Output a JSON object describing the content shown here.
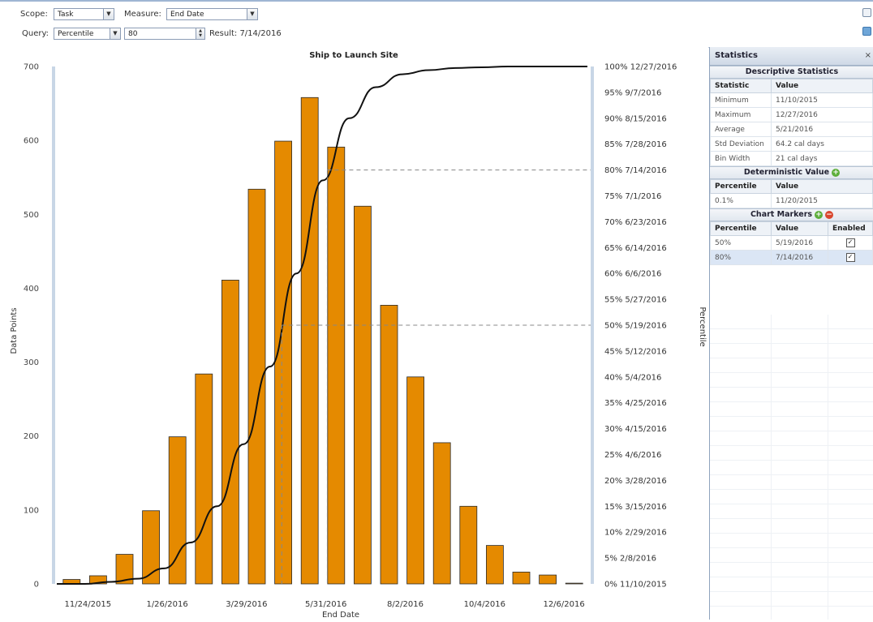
{
  "toolbar": {
    "scope_label": "Scope:",
    "scope_value": "Task",
    "measure_label": "Measure:",
    "measure_value": "End Date",
    "query_label": "Query:",
    "query_value": "Percentile",
    "query_input": "80",
    "result_text": "Result: 7/14/2016"
  },
  "chart_data": {
    "type": "bar",
    "title": "Ship to Launch Site",
    "xlabel": "End Date",
    "ylabel": "Data Points",
    "y2label": "Percentile",
    "ylim": [
      0,
      700
    ],
    "y_ticks": [
      "0",
      "100",
      "200",
      "300",
      "400",
      "500",
      "600",
      "700"
    ],
    "x_tick_labels": [
      "11/24/2015",
      "1/26/2016",
      "3/29/2016",
      "5/31/2016",
      "8/2/2016",
      "10/4/2016",
      "12/6/2016"
    ],
    "bar_values": [
      6,
      11,
      40,
      99,
      199,
      284,
      411,
      534,
      599,
      658,
      591,
      511,
      377,
      280,
      191,
      105,
      52,
      16,
      12,
      1
    ],
    "bar_color": "#e58a00",
    "percentile_ticks": [
      "0% 11/10/2015",
      "5% 2/8/2016",
      "10% 2/29/2016",
      "15% 3/15/2016",
      "20% 3/28/2016",
      "25% 4/6/2016",
      "30% 4/15/2016",
      "35% 4/25/2016",
      "40% 5/4/2016",
      "45% 5/12/2016",
      "50% 5/19/2016",
      "55% 5/27/2016",
      "60% 6/6/2016",
      "65% 6/14/2016",
      "70% 6/23/2016",
      "75% 7/1/2016",
      "80% 7/14/2016",
      "85% 7/28/2016",
      "90% 8/15/2016",
      "95% 9/7/2016",
      "100% 12/27/2016"
    ],
    "cumulative_percent": [
      0,
      0.4,
      1,
      3,
      8,
      15,
      27,
      42,
      60,
      78,
      90,
      96,
      98.5,
      99.3,
      99.7,
      99.85,
      100,
      100,
      100,
      100
    ],
    "markers": [
      {
        "percentile": 50,
        "date": "5/19/2016"
      },
      {
        "percentile": 80,
        "date": "7/14/2016"
      }
    ]
  },
  "panel": {
    "title": "Statistics",
    "close": "×",
    "desc_title": "Descriptive Statistics",
    "desc_cols": [
      "Statistic",
      "Value"
    ],
    "desc_rows": [
      [
        "Minimum",
        "11/10/2015"
      ],
      [
        "Maximum",
        "12/27/2016"
      ],
      [
        "Average",
        "5/21/2016"
      ],
      [
        "Std Deviation",
        "64.2 cal days"
      ],
      [
        "Bin Width",
        "21 cal days"
      ]
    ],
    "det_title": "Deterministic Value",
    "det_cols": [
      "Percentile",
      "Value"
    ],
    "det_rows": [
      [
        "0.1%",
        "11/20/2015"
      ]
    ],
    "markers_title": "Chart Markers",
    "markers_cols": [
      "Percentile",
      "Value",
      "Enabled"
    ],
    "markers_rows": [
      [
        "50%",
        "5/19/2016",
        "✓"
      ],
      [
        "80%",
        "7/14/2016",
        "✓"
      ]
    ]
  }
}
